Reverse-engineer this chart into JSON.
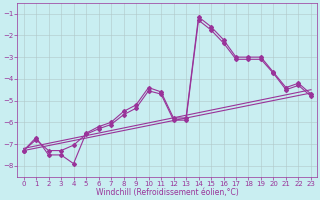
{
  "xlabel": "Windchill (Refroidissement éolien,°C)",
  "xlim": [
    -0.5,
    23.5
  ],
  "ylim": [
    -8.5,
    -0.5
  ],
  "yticks": [
    -8,
    -7,
    -6,
    -5,
    -4,
    -3,
    -2,
    -1
  ],
  "xticks": [
    0,
    1,
    2,
    3,
    4,
    5,
    6,
    7,
    8,
    9,
    10,
    11,
    12,
    13,
    14,
    15,
    16,
    17,
    18,
    19,
    20,
    21,
    22,
    23
  ],
  "bg_color": "#c9eef1",
  "grid_color": "#b0c8c8",
  "line_color": "#993399",
  "line1_x": [
    0,
    1,
    2,
    3,
    4,
    5,
    6,
    7,
    8,
    9,
    10,
    11,
    12,
    13,
    14,
    15,
    16,
    17,
    18,
    19,
    20,
    21,
    22,
    23
  ],
  "line1_y": [
    -7.3,
    -6.7,
    -7.5,
    -7.5,
    -7.9,
    -6.5,
    -6.2,
    -6.0,
    -5.5,
    -5.2,
    -4.4,
    -4.6,
    -5.8,
    -5.8,
    -1.15,
    -1.6,
    -2.2,
    -3.0,
    -3.0,
    -3.0,
    -3.7,
    -4.4,
    -4.2,
    -4.7
  ],
  "line2_x": [
    0,
    1,
    2,
    3,
    4,
    5,
    6,
    7,
    8,
    9,
    10,
    11,
    12,
    13,
    14,
    15,
    16,
    17,
    18,
    19,
    20,
    21,
    22,
    23
  ],
  "line2_y": [
    -7.3,
    -6.8,
    -7.3,
    -7.3,
    -7.05,
    -6.55,
    -6.3,
    -6.1,
    -5.65,
    -5.35,
    -4.55,
    -4.7,
    -5.9,
    -5.9,
    -1.3,
    -1.75,
    -2.35,
    -3.1,
    -3.1,
    -3.1,
    -3.75,
    -4.5,
    -4.3,
    -4.8
  ],
  "line3_x": [
    0,
    23
  ],
  "line3_y": [
    -7.3,
    -4.65
  ],
  "line4_x": [
    0,
    23
  ],
  "line4_y": [
    -7.2,
    -4.5
  ],
  "marker": "D",
  "markersize": 2.0,
  "linewidth": 0.8,
  "tick_fontsize": 5,
  "label_fontsize": 5.5
}
